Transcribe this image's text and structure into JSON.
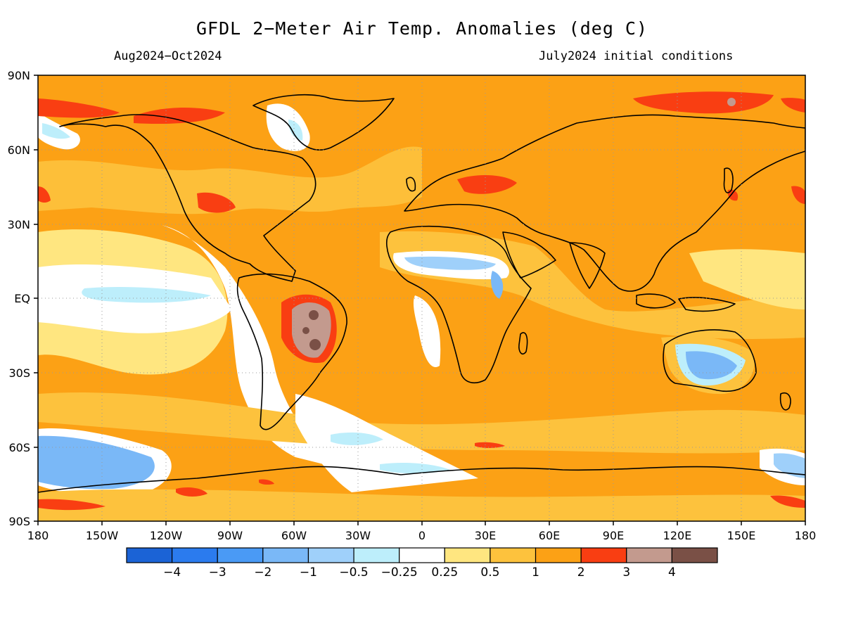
{
  "title": "GFDL 2−Meter Air Temp. Anomalies (deg C)",
  "period": "Aug2024−Oct2024",
  "initial_conditions": "July2024 initial conditions",
  "lat_labels": [
    "90N",
    "60N",
    "30N",
    "EQ",
    "30S",
    "60S",
    "90S"
  ],
  "lon_labels": [
    "180",
    "150W",
    "120W",
    "90W",
    "60W",
    "30W",
    "0",
    "30E",
    "60E",
    "90E",
    "120E",
    "150E",
    "180"
  ],
  "colorbar": {
    "colors": [
      "#1b63d6",
      "#2b7bee",
      "#4a9af5",
      "#7ab8f7",
      "#9fd0fa",
      "#bdeefb",
      "#ffffff",
      "#ffe680",
      "#fdc23d",
      "#fca115",
      "#f93e12",
      "#c39a8e",
      "#7a5046"
    ],
    "labels": [
      "−4",
      "−3",
      "−2",
      "−1",
      "−0.5",
      "−0.25",
      "0.25",
      "0.5",
      "1",
      "2",
      "3",
      "4"
    ]
  }
}
